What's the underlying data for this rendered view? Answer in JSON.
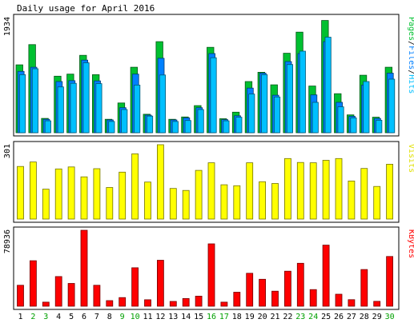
{
  "title": "Daily usage for April 2016",
  "colors": {
    "background": "#ffffff",
    "panel_border": "#000000",
    "pages": "#00c030",
    "files": "#0080ff",
    "hits": "#00c0ff",
    "visits": "#ffff00",
    "kbytes": "#ff0000",
    "weekend_label": "#00a000",
    "weekday_label": "#000000"
  },
  "chart_data": [
    {
      "type": "bar",
      "name": "hits-panel",
      "ylabel_parts": [
        {
          "text": "Pages",
          "color": "#00c030"
        },
        {
          "text": "/",
          "color": "#000000"
        },
        {
          "text": "Files",
          "color": "#0080ff"
        },
        {
          "text": "/",
          "color": "#000000"
        },
        {
          "text": "Hits",
          "color": "#00c0ff"
        }
      ],
      "ymax_label": "1934",
      "ylim": [
        0,
        1934
      ],
      "categories": [
        "1",
        "2",
        "3",
        "4",
        "5",
        "6",
        "7",
        "8",
        "9",
        "10",
        "11",
        "12",
        "13",
        "14",
        "15",
        "16",
        "17",
        "18",
        "19",
        "20",
        "21",
        "22",
        "23",
        "24",
        "25",
        "26",
        "27",
        "28",
        "29",
        "30"
      ],
      "series": [
        {
          "name": "Pages",
          "values": [
            1140,
            1480,
            240,
            950,
            985,
            1300,
            975,
            225,
            500,
            1100,
            310,
            1530,
            225,
            265,
            455,
            1435,
            235,
            345,
            860,
            1015,
            805,
            1335,
            1690,
            785,
            1885,
            655,
            300,
            965,
            260,
            1100
          ]
        },
        {
          "name": "Files",
          "values": [
            1030,
            1100,
            225,
            860,
            875,
            1220,
            870,
            215,
            420,
            985,
            295,
            1250,
            215,
            250,
            420,
            1330,
            220,
            285,
            750,
            1000,
            630,
            1195,
            1330,
            635,
            1530,
            510,
            275,
            800,
            240,
            1000
          ]
        },
        {
          "name": "Hits",
          "values": [
            975,
            1075,
            200,
            770,
            830,
            1175,
            825,
            190,
            390,
            800,
            280,
            970,
            190,
            205,
            390,
            1260,
            200,
            260,
            650,
            975,
            600,
            1145,
            1370,
            510,
            1605,
            435,
            250,
            860,
            210,
            900
          ]
        }
      ],
      "weekend_days": [
        "2",
        "3",
        "9",
        "10",
        "16",
        "17",
        "23",
        "24",
        "30"
      ]
    },
    {
      "type": "bar",
      "name": "visits-panel",
      "ylabel_parts": [
        {
          "text": "Visits",
          "color": "#e0e000"
        }
      ],
      "ymax_label": "301",
      "ylim": [
        0,
        301
      ],
      "categories": [
        "1",
        "2",
        "3",
        "4",
        "5",
        "6",
        "7",
        "8",
        "9",
        "10",
        "11",
        "12",
        "13",
        "14",
        "15",
        "16",
        "17",
        "18",
        "19",
        "20",
        "21",
        "22",
        "23",
        "24",
        "25",
        "26",
        "27",
        "28",
        "29",
        "30"
      ],
      "series": [
        {
          "name": "Visits",
          "values": [
            213,
            231,
            121,
            203,
            211,
            171,
            204,
            128,
            190,
            264,
            150,
            301,
            124,
            116,
            197,
            228,
            139,
            135,
            228,
            151,
            144,
            245,
            229,
            228,
            238,
            245,
            154,
            205,
            132,
            222
          ]
        }
      ]
    },
    {
      "type": "bar",
      "name": "kbytes-panel",
      "ylabel_parts": [
        {
          "text": "KBytes",
          "color": "#ff0000"
        }
      ],
      "ymax_label": "78936",
      "ylim": [
        0,
        78936
      ],
      "categories": [
        "1",
        "2",
        "3",
        "4",
        "5",
        "6",
        "7",
        "8",
        "9",
        "10",
        "11",
        "12",
        "13",
        "14",
        "15",
        "16",
        "17",
        "18",
        "19",
        "20",
        "21",
        "22",
        "23",
        "24",
        "25",
        "26",
        "27",
        "28",
        "29",
        "30"
      ],
      "series": [
        {
          "name": "KBytes",
          "values": [
            21800,
            47300,
            4200,
            30800,
            23700,
            78936,
            21800,
            5800,
            9000,
            40000,
            6700,
            47800,
            5000,
            8000,
            10500,
            64800,
            4200,
            14500,
            34200,
            28000,
            15600,
            36400,
            44600,
            17300,
            63500,
            12500,
            6800,
            38100,
            5100,
            51700
          ]
        }
      ]
    }
  ]
}
